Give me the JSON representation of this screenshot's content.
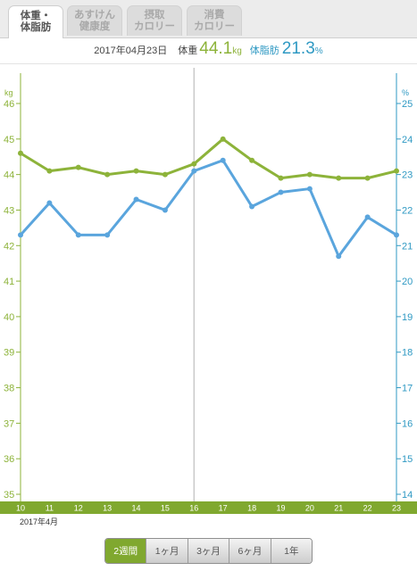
{
  "tabs": [
    {
      "lines": [
        "体重・",
        "体脂肪"
      ],
      "active": true
    },
    {
      "lines": [
        "あすけん",
        "健康度"
      ],
      "active": false
    },
    {
      "lines": [
        "摂取",
        "カロリー"
      ],
      "active": false
    },
    {
      "lines": [
        "消費",
        "カロリー"
      ],
      "active": false
    }
  ],
  "summary": {
    "date": "2017年04月23日",
    "weight_label": "体重",
    "weight_value": "44.1",
    "weight_unit": "kg",
    "fat_label": "体脂肪",
    "fat_value": "21.3",
    "fat_unit": "%"
  },
  "colors": {
    "weight": "#8db33a",
    "body_fat": "#5aa5dd",
    "right_axis": "#2f99c3",
    "selected_line": "#c9c9c9",
    "x_band": "#80a82f"
  },
  "chart_data": {
    "type": "line",
    "x": [
      "10",
      "11",
      "12",
      "13",
      "14",
      "15",
      "16",
      "17",
      "18",
      "19",
      "20",
      "21",
      "22",
      "23"
    ],
    "x_sublabel": "2017年4月",
    "selected_x": "16",
    "left_axis": {
      "unit": "kg",
      "ylim": [
        35,
        46
      ],
      "ticks": [
        35,
        36,
        37,
        38,
        39,
        40,
        41,
        42,
        43,
        44,
        45,
        46
      ]
    },
    "right_axis": {
      "unit": "%",
      "ylim": [
        14,
        25
      ],
      "ticks": [
        14,
        15,
        16,
        17,
        18,
        19,
        20,
        21,
        22,
        23,
        24,
        25
      ]
    },
    "series": [
      {
        "axis": "left",
        "values": [
          44.6,
          44.1,
          44.2,
          44.0,
          44.1,
          44.0,
          44.3,
          45.0,
          44.4,
          43.9,
          44.0,
          43.9,
          43.9,
          44.1
        ]
      },
      {
        "axis": "right",
        "values": [
          21.3,
          22.2,
          21.3,
          21.3,
          22.3,
          22.0,
          23.1,
          23.4,
          22.1,
          22.5,
          22.6,
          20.7,
          21.8,
          21.3
        ]
      }
    ]
  },
  "range_buttons": [
    {
      "label": "2週間",
      "active": true
    },
    {
      "label": "1ヶ月",
      "active": false
    },
    {
      "label": "3ヶ月",
      "active": false
    },
    {
      "label": "6ヶ月",
      "active": false
    },
    {
      "label": "1年",
      "active": false
    }
  ]
}
